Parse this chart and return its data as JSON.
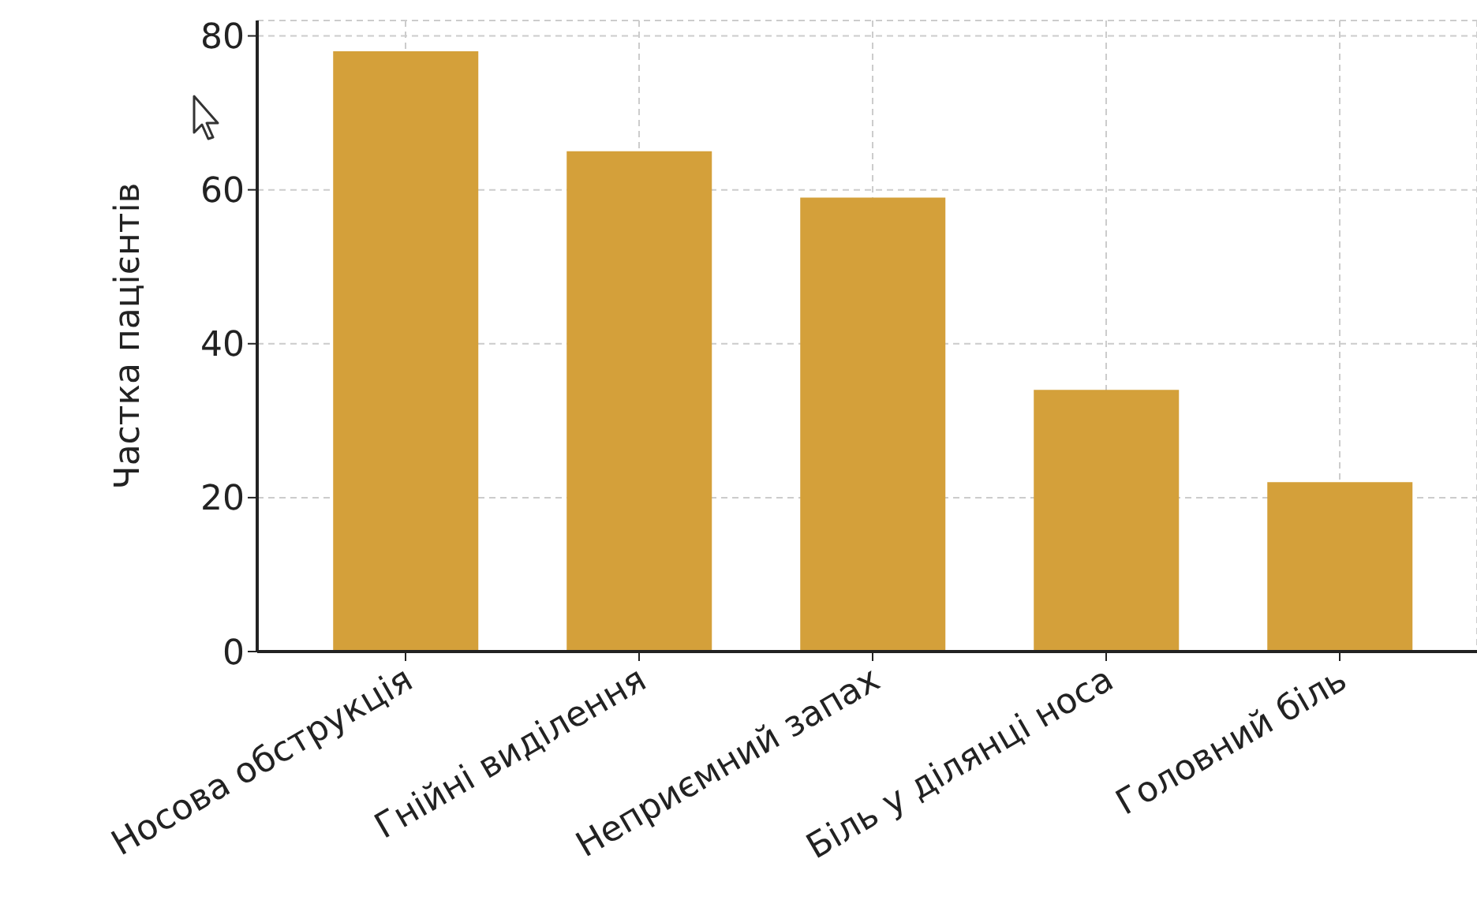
{
  "chart_data": {
    "type": "bar",
    "ylabel": "Частка пацієнтів",
    "categories": [
      "Носова обструкція",
      "Гнійні виділення",
      "Неприємний запах",
      "Біль у ділянці носа",
      "Головний біль"
    ],
    "values": [
      78,
      65,
      59,
      34,
      22
    ],
    "color": "#d4a03a",
    "ylim": [
      0,
      82
    ],
    "yticks": [
      0,
      20,
      40,
      60,
      80
    ],
    "grid": true
  }
}
